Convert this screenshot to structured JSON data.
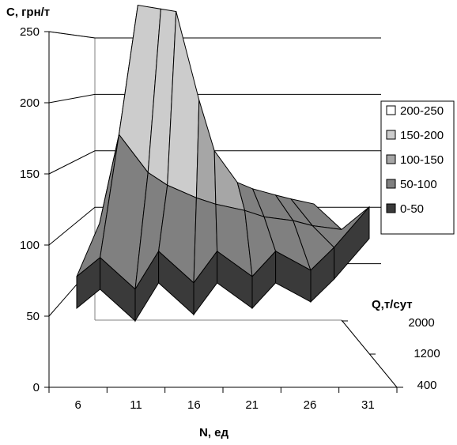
{
  "chart_data": {
    "type": "surface",
    "title": "",
    "zlabel": "C, грн/т",
    "xlabel": "N, ед",
    "depth_label": "Q,т/сут",
    "zlim": [
      0,
      250
    ],
    "z_ticks": [
      "0",
      "50",
      "100",
      "150",
      "200",
      "250"
    ],
    "x_ticks": [
      "6",
      "11",
      "16",
      "21",
      "26",
      "31"
    ],
    "depth_ticks": [
      "400",
      "1200",
      "2000"
    ],
    "grid": true,
    "legend_position": "right",
    "legend": [
      {
        "label": "200-250",
        "color": "#ffffff"
      },
      {
        "label": "150-200",
        "color": "#cccccc"
      },
      {
        "label": "100-150",
        "color": "#a6a6a6"
      },
      {
        "label": "50-100",
        "color": "#808080"
      },
      {
        "label": "0-50",
        "color": "#3a3a3a"
      }
    ],
    "x": [
      6,
      8,
      11,
      13,
      16,
      18,
      21,
      23,
      26,
      28,
      31
    ],
    "rows": [
      {
        "q": 2000,
        "values": [
          95,
          235,
          232,
          230,
          160,
          120,
          95,
          90,
          85,
          82,
          78
        ]
      },
      {
        "q": 1200,
        "values": [
          80,
          150,
          120,
          110,
          100,
          95,
          90,
          85,
          82,
          78,
          75
        ]
      },
      {
        "q": 400,
        "values": [
          55,
          70,
          45,
          75,
          50,
          75,
          55,
          75,
          60,
          78,
          110
        ]
      }
    ]
  }
}
